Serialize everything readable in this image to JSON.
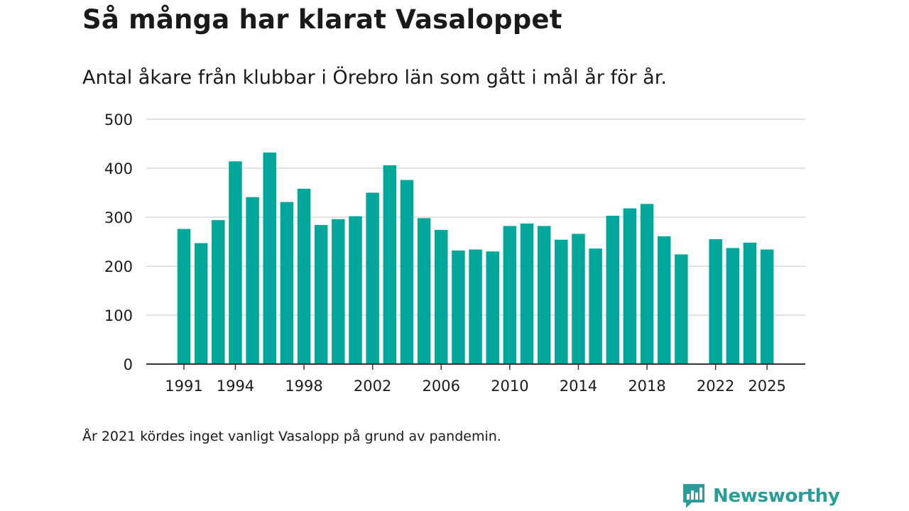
{
  "header": {
    "title": "Så många har klarat Vasaloppet",
    "subtitle": "Antal åkare från klubbar i Örebro län som gått i mål år för år."
  },
  "footnote": "År 2021 kördes inget vanligt Vasalopp på grund av pandemin.",
  "brand": {
    "name": "Newsworthy",
    "icon": "newsworthy-logo-icon",
    "color": "#2a9d9a"
  },
  "colors": {
    "bar": "#00a79a",
    "grid": "#d9d9d9",
    "axis": "#333333",
    "text": "#1a1a1a"
  },
  "chart_data": {
    "type": "bar",
    "title": "Så många har klarat Vasaloppet",
    "subtitle": "Antal åkare från klubbar i Örebro län som gått i mål år för år.",
    "xlabel": "",
    "ylabel": "",
    "ylim": [
      0,
      500
    ],
    "yticks": [
      "0",
      "100",
      "200",
      "300",
      "400",
      "500"
    ],
    "xticks": [
      "1991",
      "1994",
      "1998",
      "2002",
      "2006",
      "2010",
      "2014",
      "2018",
      "2022",
      "2025"
    ],
    "grid": true,
    "legend": "none",
    "categories": [
      1991,
      1992,
      1993,
      1994,
      1995,
      1996,
      1997,
      1998,
      1999,
      2000,
      2001,
      2002,
      2003,
      2004,
      2005,
      2006,
      2007,
      2008,
      2009,
      2010,
      2011,
      2012,
      2013,
      2014,
      2015,
      2016,
      2017,
      2018,
      2019,
      2020,
      2021,
      2022,
      2023,
      2024,
      2025
    ],
    "values": [
      276,
      247,
      294,
      414,
      341,
      432,
      331,
      358,
      284,
      296,
      302,
      350,
      406,
      376,
      298,
      274,
      232,
      234,
      230,
      282,
      287,
      282,
      254,
      266,
      236,
      303,
      318,
      327,
      261,
      224,
      null,
      255,
      237,
      248,
      234
    ]
  }
}
